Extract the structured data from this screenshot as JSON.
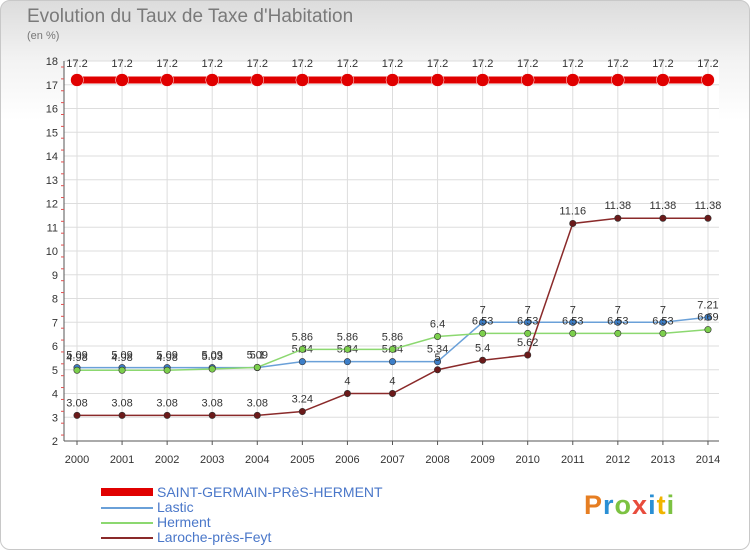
{
  "title": "Evolution du Taux de Taxe d'Habitation",
  "unit_label": "(en %)",
  "logo": {
    "text": "Proxiti",
    "colors": [
      "#e67e22",
      "#2a8fd4",
      "#7cc242",
      "#e84c3d",
      "#2a8fd4",
      "#f0b400",
      "#7cc242"
    ]
  },
  "chart_data": {
    "type": "line",
    "title": "Evolution du Taux de Taxe d'Habitation",
    "ylabel": "(en %)",
    "xlabel": "",
    "ylim": [
      2,
      18
    ],
    "yticks": [
      2,
      3,
      4,
      5,
      6,
      7,
      8,
      9,
      10,
      11,
      12,
      13,
      14,
      15,
      16,
      17,
      18
    ],
    "categories": [
      "2000",
      "2001",
      "2002",
      "2003",
      "2004",
      "2005",
      "2006",
      "2007",
      "2008",
      "2009",
      "2010",
      "2011",
      "2012",
      "2013",
      "2014"
    ],
    "series": [
      {
        "name": "SAINT-GERMAIN-PRèS-HERMENT",
        "color": "#e00000",
        "thick": true,
        "values": [
          17.2,
          17.2,
          17.2,
          17.2,
          17.2,
          17.2,
          17.2,
          17.2,
          17.2,
          17.2,
          17.2,
          17.2,
          17.2,
          17.2,
          17.2
        ],
        "labels": [
          "17.2",
          "17.2",
          "17.2",
          "17.2",
          "17.2",
          "17.2",
          "17.2",
          "17.2",
          "17.2",
          "17.2",
          "17.2",
          "17.2",
          "17.2",
          "17.2",
          "17.2"
        ]
      },
      {
        "name": "Lastic",
        "color": "#6aa0d8",
        "marker": "#3d7fc8",
        "values": [
          5.09,
          5.09,
          5.09,
          5.09,
          5.09,
          5.34,
          5.34,
          5.34,
          5.34,
          7,
          7,
          7,
          7,
          7,
          7.21
        ],
        "labels": [
          "5.09",
          "5.09",
          "5.09",
          "5.09",
          "5.09",
          "5.34",
          "5.34",
          "5.34",
          "5.34",
          "7",
          "7",
          "7",
          "7",
          "7",
          "7.21"
        ]
      },
      {
        "name": "Herment",
        "color": "#8cd870",
        "marker": "#7ccf4c",
        "values": [
          4.98,
          4.98,
          4.98,
          5.03,
          5.1,
          5.86,
          5.86,
          5.86,
          6.4,
          6.53,
          6.53,
          6.53,
          6.53,
          6.53,
          6.69
        ],
        "labels": [
          "4.98",
          "4.98",
          "4.98",
          "5.03",
          "5.1",
          "5.86",
          "5.86",
          "5.86",
          "6.4",
          "6.53",
          "6.53",
          "6.53",
          "6.53",
          "6.53",
          "6.69"
        ]
      },
      {
        "name": "Laroche-près-Feyt",
        "color": "#8a2a2a",
        "marker": "#6b1a1a",
        "values": [
          3.08,
          3.08,
          3.08,
          3.08,
          3.08,
          3.24,
          4,
          4,
          5,
          5.4,
          5.62,
          11.16,
          11.38,
          11.38,
          11.38
        ],
        "labels": [
          "3.08",
          "3.08",
          "3.08",
          "3.08",
          "3.08",
          "3.24",
          "4",
          "4",
          "5",
          "5.4",
          "5.62",
          "11.16",
          "11.38",
          "11.38",
          "11.38"
        ]
      }
    ],
    "legend_position": "bottom-left"
  }
}
